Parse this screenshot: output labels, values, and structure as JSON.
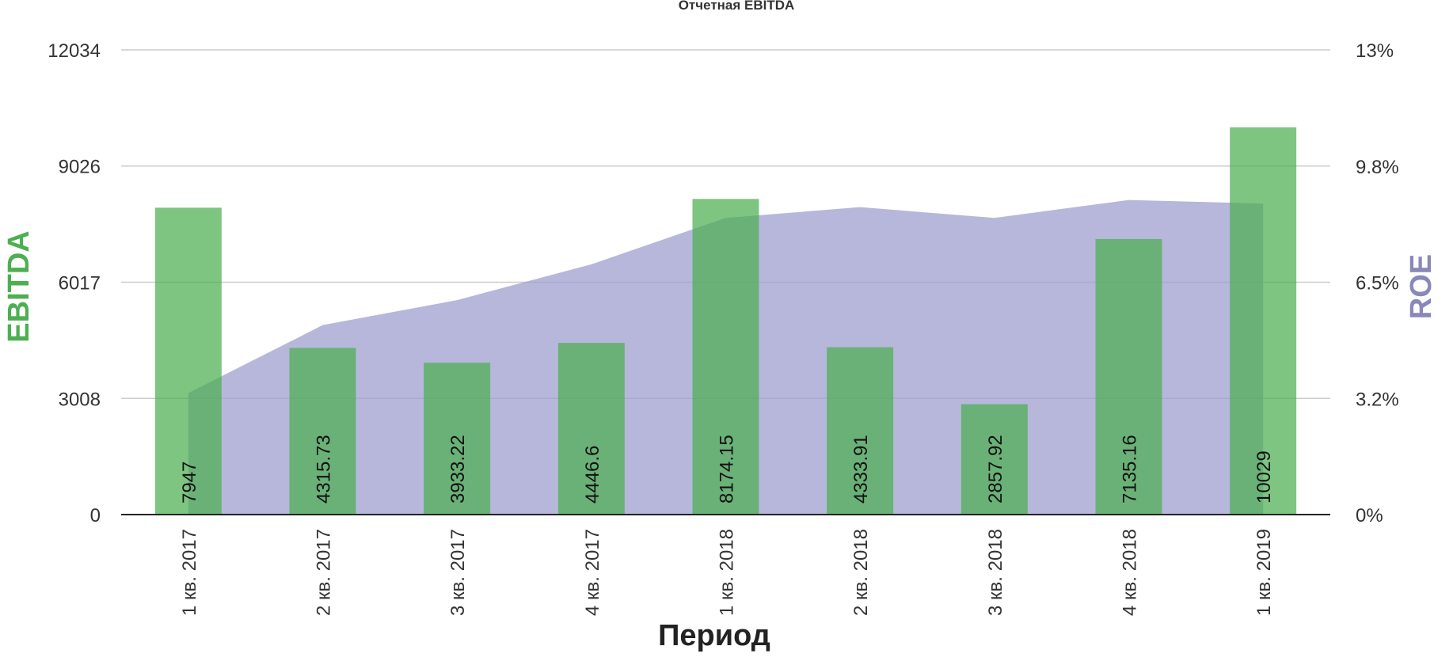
{
  "chart_data": {
    "type": "bar",
    "title": "Отчетная EBITDA",
    "xlabel": "Период",
    "ylabel": "EBITDA",
    "y2label": "ROE",
    "categories": [
      "1 кв. 2017",
      "2 кв. 2017",
      "3 кв. 2017",
      "4 кв. 2017",
      "1 кв. 2018",
      "2 кв. 2018",
      "3 кв. 2018",
      "4 кв. 2018",
      "1 кв. 2019"
    ],
    "series": [
      {
        "name": "EBITDA",
        "type": "bar",
        "axis": "left",
        "values": [
          7947,
          4315.73,
          3933.22,
          4446.6,
          8174.15,
          4333.91,
          2857.92,
          7135.16,
          10029
        ],
        "labels": [
          "7947",
          "4315.73",
          "3933.22",
          "4446.6",
          "8174.15",
          "4333.91",
          "2857.92",
          "7135.16",
          "10029"
        ]
      },
      {
        "name": "ROE",
        "type": "area",
        "axis": "right",
        "values": [
          3.4,
          5.3,
          6.0,
          7.0,
          8.3,
          8.6,
          8.3,
          8.8,
          8.7
        ]
      }
    ],
    "ylim": [
      0,
      12034
    ],
    "y_ticks": [
      0,
      3008,
      6017,
      9026,
      12034
    ],
    "y_tick_labels": [
      "0",
      "3008",
      "6017",
      "9026",
      "12034"
    ],
    "y2lim": [
      0,
      13
    ],
    "y2_ticks": [
      0,
      3.25,
      6.5,
      9.75,
      13
    ],
    "y2_tick_labels": [
      "0%",
      "3.2%",
      "6.5%",
      "9.8%",
      "13%"
    ],
    "grid": true,
    "colors": {
      "bars": "#4caf50",
      "area": "#9f9fcf",
      "ylabel": "#4caf50",
      "y2label": "#8888bb",
      "grid": "#cccccc",
      "text": "#333333"
    }
  }
}
